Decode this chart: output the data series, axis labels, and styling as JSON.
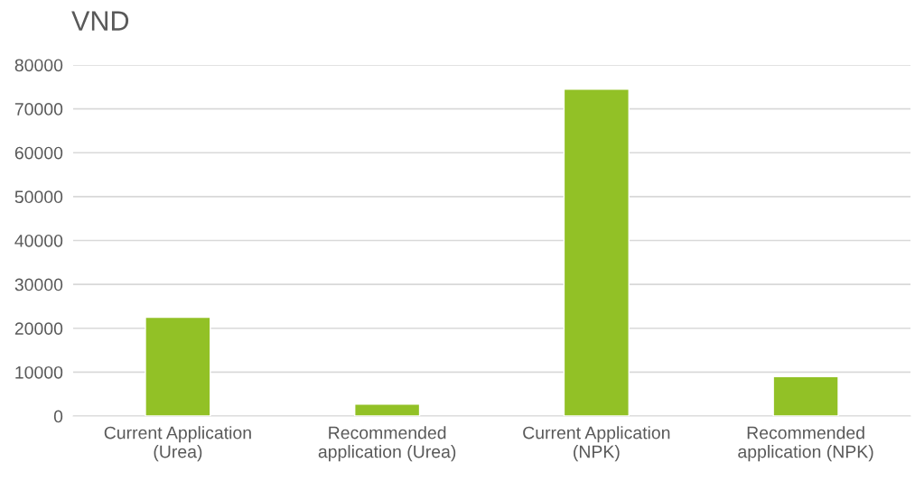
{
  "chart_data": {
    "type": "bar",
    "ylabel": "VND",
    "categories": [
      "Current Application\n(Urea)",
      "Recommended\napplication (Urea)",
      "Current Application\n(NPK)",
      "Recommended\napplication (NPK)"
    ],
    "values": [
      22500,
      2700,
      74500,
      9000
    ],
    "color": "#92c126",
    "ylim": [
      0,
      80000
    ],
    "yticks": [
      0,
      10000,
      20000,
      30000,
      40000,
      50000,
      60000,
      70000,
      80000
    ],
    "grid": "y"
  }
}
